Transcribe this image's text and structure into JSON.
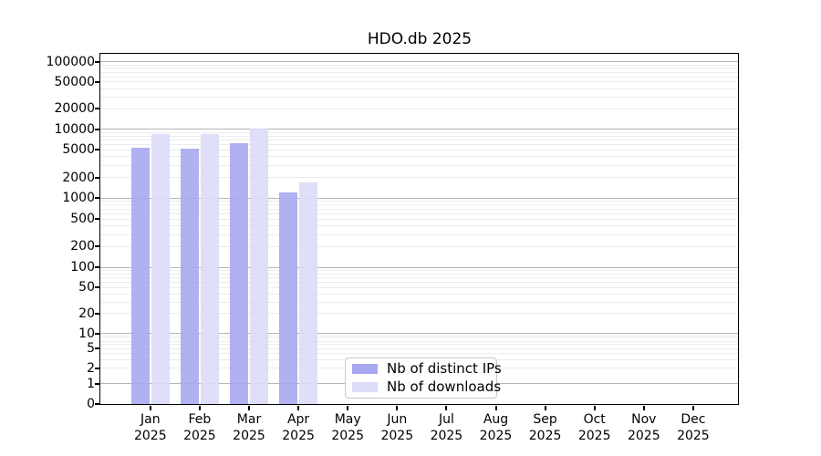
{
  "chart_data": {
    "type": "bar",
    "title": "HDO.db 2025",
    "xlabel": "",
    "ylabel": "",
    "yscale": "symlog",
    "ylim": [
      0,
      130000
    ],
    "grid": true,
    "legend_position": "lower center",
    "yticks": [
      100000,
      50000,
      20000,
      10000,
      5000,
      2000,
      1000,
      500,
      200,
      100,
      50,
      20,
      10,
      5,
      2,
      1,
      0
    ],
    "categories": [
      {
        "month": "Jan",
        "year": "2025"
      },
      {
        "month": "Feb",
        "year": "2025"
      },
      {
        "month": "Mar",
        "year": "2025"
      },
      {
        "month": "Apr",
        "year": "2025"
      },
      {
        "month": "May",
        "year": "2025"
      },
      {
        "month": "Jun",
        "year": "2025"
      },
      {
        "month": "Jul",
        "year": "2025"
      },
      {
        "month": "Aug",
        "year": "2025"
      },
      {
        "month": "Sep",
        "year": "2025"
      },
      {
        "month": "Oct",
        "year": "2025"
      },
      {
        "month": "Nov",
        "year": "2025"
      },
      {
        "month": "Dec",
        "year": "2025"
      }
    ],
    "series": [
      {
        "name": "Nb of distinct IPs",
        "color": "#a8a8f0",
        "values": [
          5400,
          5300,
          6200,
          1200,
          null,
          null,
          null,
          null,
          null,
          null,
          null,
          null
        ]
      },
      {
        "name": "Nb of downloads",
        "color": "#dcdcf8",
        "values": [
          8400,
          8400,
          10300,
          1700,
          null,
          null,
          null,
          null,
          null,
          null,
          null,
          null
        ]
      }
    ],
    "colors": {
      "major_gridline": "#b6b6b6",
      "minor_gridline": "#ececec",
      "spine": "#000000",
      "background": "#ffffff"
    }
  }
}
